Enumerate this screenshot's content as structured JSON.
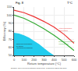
{
  "chart_data": {
    "type": "line",
    "xlabel": "Return temperature (°C)",
    "ylabel": "Efficiency (%)",
    "x": [
      0,
      100,
      200,
      300,
      400,
      500,
      600
    ],
    "series": [
      {
        "type": "area",
        "color": "#22ccee",
        "x": [
          0,
          50,
          100,
          150,
          200,
          250,
          300,
          350,
          400,
          600
        ],
        "values": [
          78,
          77,
          75,
          72,
          68,
          64,
          59,
          54,
          50,
          50
        ],
        "y_bottom": 50
      },
      {
        "type": "line",
        "color": "#ee3333",
        "values": [
          106,
          103,
          98,
          92,
          85,
          76,
          65
        ]
      },
      {
        "type": "line",
        "color": "#33aa33",
        "values": [
          100,
          96,
          90,
          83,
          75,
          66,
          56
        ]
      }
    ],
    "xlim": [
      0,
      600
    ],
    "ylim": [
      50,
      110
    ],
    "xticks": [
      0,
      100,
      200,
      300,
      400,
      500,
      600
    ],
    "yticks": [
      50,
      60,
      70,
      80,
      90,
      100,
      110
    ],
    "grid": true,
    "annotations": [
      {
        "text": "Actual performance\nof the system",
        "x": 430,
        "y": 82,
        "color": "#ee3333"
      },
      {
        "text": "Optimized performance\n(condensation)",
        "x": 430,
        "y": 66,
        "color": "#33aa33"
      },
      {
        "text": "Observed performance\nfor boilers\n(guaranteed conditions)",
        "x": 8,
        "y": 62,
        "color": "#222222"
      }
    ],
    "top_left_text": "Fig. 8",
    "top_right_text": "T°C",
    "caption": "Example: 100% on PCI for actualize values at 15 °C and at full load for the boiler."
  }
}
